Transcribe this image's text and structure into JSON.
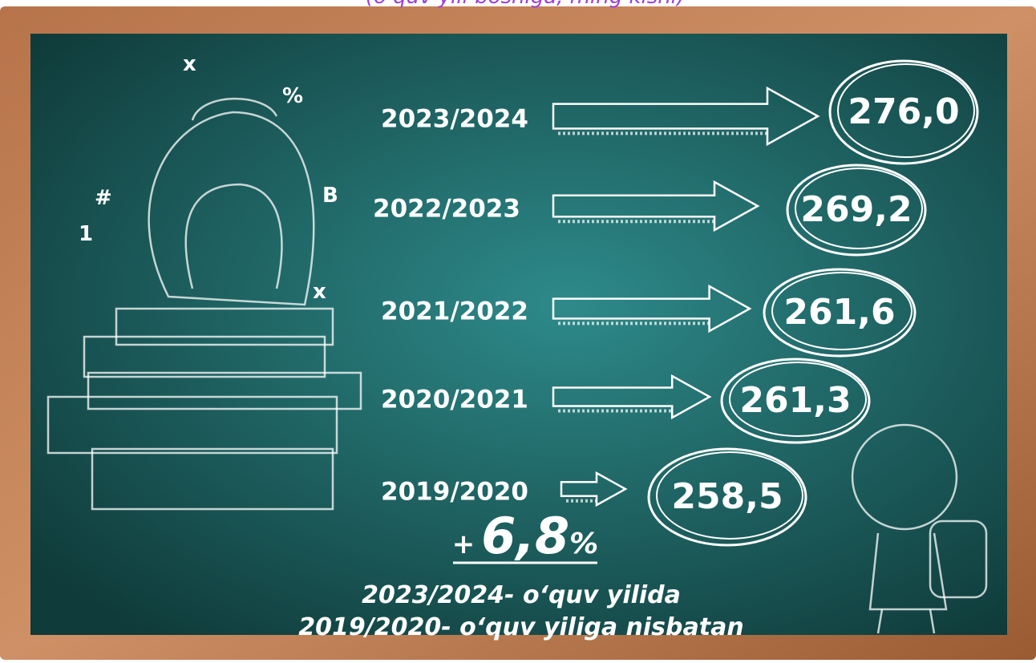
{
  "title": "(o‘quv yili boshiga, ming kishi)",
  "items": [
    {
      "year": "2023/2024",
      "value": "276,0"
    },
    {
      "year": "2022/2023",
      "value": "269,2"
    },
    {
      "year": "2021/2022",
      "value": "261,6"
    },
    {
      "year": "2020/2021",
      "value": "261,3"
    },
    {
      "year": "2019/2020",
      "value": "258,5"
    }
  ],
  "change": {
    "sign": "+",
    "number": "6,8",
    "unit": "%"
  },
  "note": [
    "2023/2024- o‘quv yilida",
    "2019/2020- o‘quv yiliga nisbatan"
  ]
}
